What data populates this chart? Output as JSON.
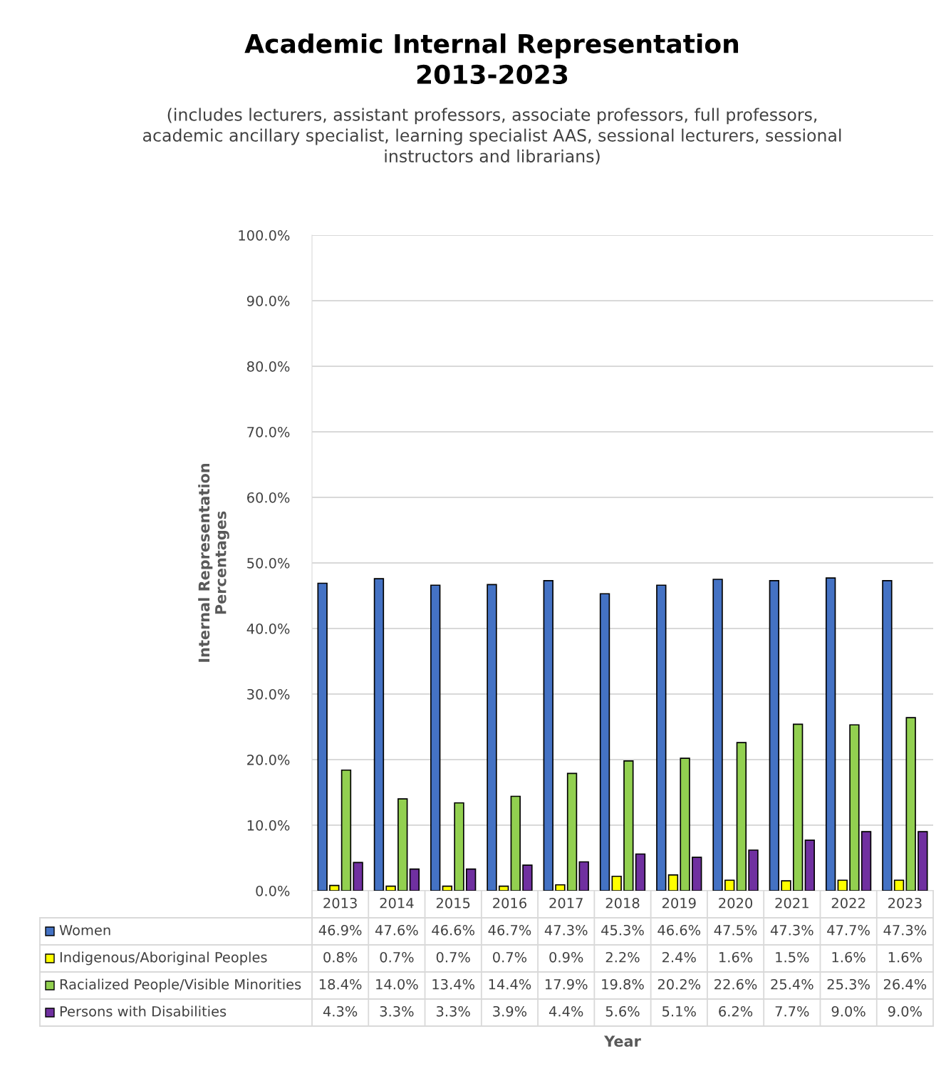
{
  "chart_data": {
    "type": "bar",
    "title": "Academic Internal Representation\n2013-2023",
    "subtitle": "(includes lecturers, assistant professors, associate professors, full professors,\nacademic ancillary specialist, learning specialist AAS, sessional lecturers, sessional\ninstructors and librarians)",
    "annotations": [
      "Year"
    ],
    "ylabel": "Internal Representation\nPercentages",
    "categories": [
      "2013",
      "2014",
      "2015",
      "2016",
      "2017",
      "2018",
      "2019",
      "2020",
      "2021",
      "2022",
      "2023"
    ],
    "series": [
      {
        "name": "Women",
        "color": "#4472c4",
        "values": [
          46.9,
          47.6,
          46.6,
          46.7,
          47.3,
          45.3,
          46.6,
          47.5,
          47.3,
          47.7,
          47.3
        ],
        "value_labels": [
          "46.9%",
          "47.6%",
          "46.6%",
          "46.7%",
          "47.3%",
          "45.3%",
          "46.6%",
          "47.5%",
          "47.3%",
          "47.7%",
          "47.3%"
        ]
      },
      {
        "name": "Indigenous/Aboriginal Peoples",
        "color": "#ffff00",
        "values": [
          0.8,
          0.7,
          0.7,
          0.7,
          0.9,
          2.2,
          2.4,
          1.6,
          1.5,
          1.6,
          1.6
        ],
        "value_labels": [
          "0.8%",
          "0.7%",
          "0.7%",
          "0.7%",
          "0.9%",
          "2.2%",
          "2.4%",
          "1.6%",
          "1.5%",
          "1.6%",
          "1.6%"
        ]
      },
      {
        "name": "Racialized People/Visible Minorities",
        "color": "#92d050",
        "values": [
          18.4,
          14.0,
          13.4,
          14.4,
          17.9,
          19.8,
          20.2,
          22.6,
          25.4,
          25.3,
          26.4
        ],
        "value_labels": [
          "18.4%",
          "14.0%",
          "13.4%",
          "14.4%",
          "17.9%",
          "19.8%",
          "20.2%",
          "22.6%",
          "25.4%",
          "25.3%",
          "26.4%"
        ]
      },
      {
        "name": "Persons with Disabilities",
        "color": "#7030a0",
        "values": [
          4.3,
          3.3,
          3.3,
          3.9,
          4.4,
          5.6,
          5.1,
          6.2,
          7.7,
          9.0,
          9.0
        ],
        "value_labels": [
          "4.3%",
          "3.3%",
          "3.3%",
          "3.9%",
          "4.4%",
          "5.6%",
          "5.1%",
          "6.2%",
          "7.7%",
          "9.0%",
          "9.0%"
        ]
      }
    ],
    "ylim": [
      0,
      100
    ],
    "yticks": [
      {
        "value": 0,
        "label": "0.0%"
      },
      {
        "value": 10,
        "label": "10.0%"
      },
      {
        "value": 20,
        "label": "20.0%"
      },
      {
        "value": 30,
        "label": "30.0%"
      },
      {
        "value": 40,
        "label": "40.0%"
      },
      {
        "value": 50,
        "label": "50.0%"
      },
      {
        "value": 60,
        "label": "60.0%"
      },
      {
        "value": 70,
        "label": "70.0%"
      },
      {
        "value": 80,
        "label": "80.0%"
      },
      {
        "value": 90,
        "label": "90.0%"
      },
      {
        "value": 100,
        "label": "100.0%"
      }
    ],
    "grid": "y",
    "legend": "bottom"
  }
}
